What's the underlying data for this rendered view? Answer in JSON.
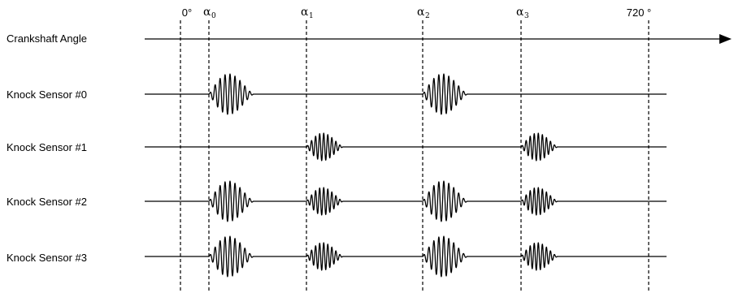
{
  "markers": {
    "start": "0°",
    "end": "720 °",
    "alphas": [
      {
        "symbol": "α",
        "sub": "0"
      },
      {
        "symbol": "α",
        "sub": "1"
      },
      {
        "symbol": "α",
        "sub": "2"
      },
      {
        "symbol": "α",
        "sub": "3"
      }
    ]
  },
  "rows": [
    {
      "label": "Crankshaft Angle"
    },
    {
      "label": "Knock Sensor #0",
      "bursts": [
        0,
        2
      ]
    },
    {
      "label": "Knock Sensor #1",
      "bursts": [
        1,
        3
      ]
    },
    {
      "label": "Knock Sensor #2",
      "bursts": [
        0,
        1,
        2,
        3
      ]
    },
    {
      "label": "Knock Sensor #3",
      "bursts": [
        0,
        1,
        2,
        3
      ]
    }
  ]
}
